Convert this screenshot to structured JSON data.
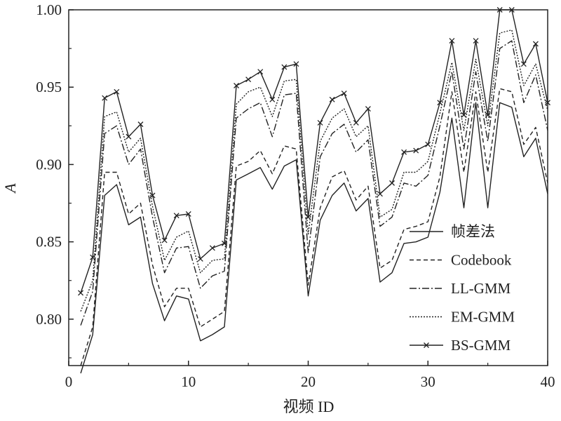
{
  "chart_data": {
    "type": "line",
    "xlabel": "视频 ID",
    "ylabel": "A",
    "xlim": [
      0,
      40
    ],
    "ylim": [
      0.77,
      1.0
    ],
    "xticks": [
      "0",
      "10",
      "20",
      "30",
      "40"
    ],
    "yticks": [
      "0.80",
      "0.85",
      "0.90",
      "0.95",
      "1.00"
    ],
    "legend_position": "bottom-right",
    "x": [
      1,
      2,
      3,
      4,
      5,
      6,
      7,
      8,
      9,
      10,
      11,
      12,
      13,
      14,
      15,
      16,
      17,
      18,
      19,
      20,
      21,
      22,
      23,
      24,
      25,
      26,
      27,
      28,
      29,
      30,
      31,
      32,
      33,
      34,
      35,
      36,
      37,
      38,
      39,
      40
    ],
    "series": [
      {
        "name": "帧差法",
        "dash": "none",
        "marker": false,
        "values": [
          0.765,
          0.79,
          0.88,
          0.887,
          0.861,
          0.866,
          0.823,
          0.799,
          0.815,
          0.813,
          0.786,
          0.79,
          0.795,
          0.89,
          0.894,
          0.898,
          0.884,
          0.899,
          0.903,
          0.815,
          0.864,
          0.88,
          0.888,
          0.87,
          0.878,
          0.824,
          0.83,
          0.849,
          0.85,
          0.853,
          0.882,
          0.93,
          0.872,
          0.94,
          0.872,
          0.94,
          0.937,
          0.905,
          0.917,
          0.881
        ]
      },
      {
        "name": "Codebook",
        "dash": "6,4",
        "marker": false,
        "values": [
          0.77,
          0.795,
          0.895,
          0.895,
          0.868,
          0.875,
          0.835,
          0.808,
          0.82,
          0.82,
          0.795,
          0.8,
          0.805,
          0.899,
          0.902,
          0.909,
          0.894,
          0.912,
          0.91,
          0.822,
          0.872,
          0.892,
          0.896,
          0.877,
          0.886,
          0.833,
          0.838,
          0.858,
          0.86,
          0.863,
          0.892,
          0.947,
          0.895,
          0.947,
          0.895,
          0.949,
          0.947,
          0.913,
          0.924,
          0.888
        ]
      },
      {
        "name": "LL-GMM",
        "dash": "10,3,2,3",
        "marker": false,
        "values": [
          0.796,
          0.818,
          0.92,
          0.925,
          0.9,
          0.91,
          0.866,
          0.83,
          0.846,
          0.847,
          0.82,
          0.828,
          0.831,
          0.93,
          0.936,
          0.94,
          0.918,
          0.945,
          0.946,
          0.843,
          0.905,
          0.92,
          0.926,
          0.908,
          0.916,
          0.86,
          0.866,
          0.888,
          0.886,
          0.893,
          0.925,
          0.96,
          0.91,
          0.96,
          0.915,
          0.975,
          0.98,
          0.94,
          0.958,
          0.922
        ]
      },
      {
        "name": "EM-GMM",
        "dash": "2,2",
        "marker": false,
        "values": [
          0.805,
          0.825,
          0.931,
          0.934,
          0.908,
          0.917,
          0.873,
          0.838,
          0.853,
          0.857,
          0.83,
          0.838,
          0.839,
          0.939,
          0.947,
          0.95,
          0.931,
          0.954,
          0.955,
          0.855,
          0.915,
          0.93,
          0.936,
          0.918,
          0.925,
          0.866,
          0.871,
          0.895,
          0.895,
          0.902,
          0.933,
          0.966,
          0.922,
          0.968,
          0.925,
          0.985,
          0.987,
          0.951,
          0.965,
          0.935
        ]
      },
      {
        "name": "BS-GMM",
        "dash": "none",
        "marker": true,
        "values": [
          0.817,
          0.84,
          0.943,
          0.947,
          0.918,
          0.926,
          0.88,
          0.851,
          0.867,
          0.868,
          0.839,
          0.846,
          0.849,
          0.951,
          0.955,
          0.96,
          0.942,
          0.963,
          0.965,
          0.866,
          0.927,
          0.942,
          0.946,
          0.927,
          0.936,
          0.881,
          0.888,
          0.908,
          0.909,
          0.913,
          0.94,
          0.98,
          0.932,
          0.98,
          0.932,
          1.0,
          1.0,
          0.965,
          0.978,
          0.94
        ]
      }
    ]
  }
}
